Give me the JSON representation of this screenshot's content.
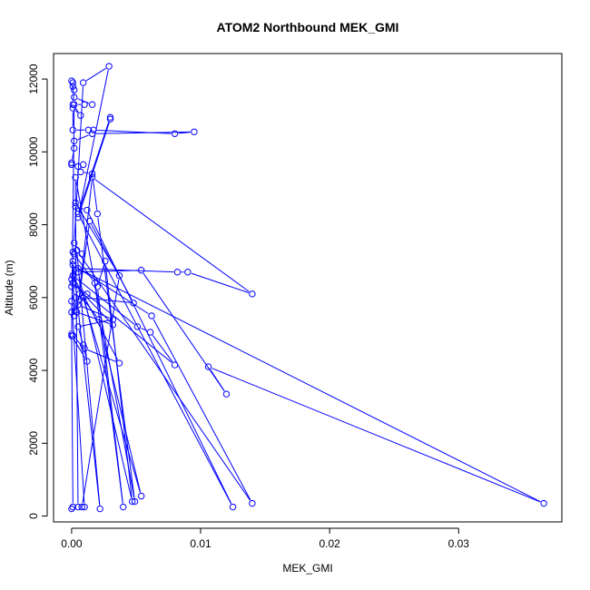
{
  "chart_data": {
    "type": "line",
    "title": "ATOM2 Northbound MEK_GMI",
    "xlabel": "MEK_GMI",
    "ylabel": "Altitude (m)",
    "xlim": [
      -0.0014,
      0.038
    ],
    "ylim": [
      -160,
      12700
    ],
    "x_ticks": [
      0,
      0.01,
      0.02,
      0.03
    ],
    "x_tick_labels": [
      "0.00",
      "0.01",
      "0.02",
      "0.03"
    ],
    "y_ticks": [
      0,
      2000,
      4000,
      6000,
      8000,
      10000,
      12000
    ],
    "y_tick_labels": [
      "0",
      "2000",
      "4000",
      "6000",
      "8000",
      "10000",
      "12000"
    ],
    "grid": false,
    "legend": "none",
    "line_color": "#0000ff",
    "marker": "open-circle",
    "series": [
      {
        "points": [
          [
            0.0,
            200
          ],
          [
            0.0001,
            250
          ],
          [
            0.0,
            5000
          ],
          [
            0.0002,
            11300
          ],
          [
            0.001,
            11300
          ],
          [
            0.0016,
            11300
          ],
          [
            0.0002,
            11500
          ],
          [
            0.0,
            11950
          ],
          [
            0.0001,
            11900
          ],
          [
            0.0001,
            11800
          ],
          [
            0.0002,
            11700
          ],
          [
            0.0001,
            11300
          ],
          [
            0.0007,
            11000
          ],
          [
            0.0001,
            11200
          ],
          [
            0.0001,
            10600
          ],
          [
            0.0013,
            10600
          ],
          [
            0.0017,
            10600
          ],
          [
            0.008,
            10500
          ],
          [
            0.0095,
            10550
          ],
          [
            0.0016,
            10500
          ],
          [
            0.0002,
            10300
          ],
          [
            0.0002,
            10100
          ],
          [
            0.0,
            9700
          ],
          [
            0.0,
            9650
          ],
          [
            0.0005,
            9600
          ],
          [
            0.0009,
            9650
          ],
          [
            0.0007,
            9450
          ],
          [
            0.0016,
            9400
          ],
          [
            0.002,
            8300
          ],
          [
            0.0049,
            400
          ],
          [
            0.0003,
            9300
          ],
          [
            0.0003,
            8500
          ],
          [
            0.0012,
            8400
          ],
          [
            0.0125,
            250
          ],
          [
            0.0005,
            8300
          ],
          [
            0.003,
            10950
          ],
          [
            0.003,
            10900
          ],
          [
            0.0005,
            8200
          ],
          [
            0.0029,
            12350
          ],
          [
            0.0009,
            11900
          ],
          [
            0.0002,
            7500
          ],
          [
            0.0008,
            7200
          ],
          [
            0.0002,
            7200
          ],
          [
            0.0001,
            7250
          ],
          [
            0.0018,
            6400
          ],
          [
            0.004,
            250
          ],
          [
            0.002,
            6300
          ],
          [
            0.0026,
            7000
          ],
          [
            0.0047,
            400
          ],
          [
            0.0005,
            6700
          ],
          [
            0.0054,
            6750
          ],
          [
            0.012,
            3350
          ],
          [
            0.0106,
            4100
          ],
          [
            0.0366,
            350
          ],
          [
            0.0005,
            6800
          ],
          [
            0.0082,
            6700
          ],
          [
            0.009,
            6700
          ],
          [
            0.014,
            6100
          ],
          [
            0.0016,
            9300
          ],
          [
            0.0006,
            6100
          ],
          [
            0.0021,
            5400
          ],
          [
            0.0054,
            550
          ],
          [
            0.0009,
            6000
          ],
          [
            0.0048,
            5850
          ],
          [
            0.0014,
            8100
          ],
          [
            0.0005,
            5800
          ],
          [
            0.0032,
            5400
          ],
          [
            0.0005,
            5200
          ],
          [
            0.0009,
            4700
          ],
          [
            0.0012,
            4250
          ],
          [
            0.0,
            4950
          ],
          [
            0.0001,
            4950
          ],
          [
            0.001,
            4600
          ],
          [
            0.0037,
            4200
          ],
          [
            0.0001,
            6600
          ],
          [
            0.0051,
            5200
          ],
          [
            0.0061,
            5050
          ],
          [
            0.008,
            4150
          ],
          [
            0.0001,
            6400
          ],
          [
            0.0032,
            5250
          ],
          [
            0.0004,
            5600
          ],
          [
            0.0002,
            5500
          ],
          [
            0.0001,
            6900
          ],
          [
            0.0062,
            5500
          ],
          [
            0.014,
            350
          ],
          [
            0.0004,
            7300
          ],
          [
            0.0022,
            200
          ],
          [
            0.0001,
            7000
          ],
          [
            0.0,
            6500
          ],
          [
            0.0,
            6300
          ],
          [
            0.0003,
            6000
          ],
          [
            0.0012,
            6100
          ],
          [
            0.0,
            5600
          ],
          [
            0.0003,
            5650
          ],
          [
            0.0,
            5900
          ],
          [
            0.001,
            250
          ],
          [
            0.0005,
            250
          ],
          [
            0.0003,
            8600
          ],
          [
            0.0037,
            6600
          ],
          [
            0.0008,
            250
          ]
        ]
      }
    ]
  }
}
